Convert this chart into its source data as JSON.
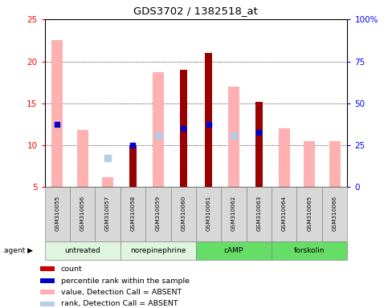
{
  "title": "GDS3702 / 1382518_at",
  "samples": [
    "GSM310055",
    "GSM310056",
    "GSM310057",
    "GSM310058",
    "GSM310059",
    "GSM310060",
    "GSM310061",
    "GSM310062",
    "GSM310063",
    "GSM310064",
    "GSM310065",
    "GSM310066"
  ],
  "agent_labels": [
    "untreated",
    "norepinephrine",
    "cAMP",
    "forskolin"
  ],
  "agent_colors": [
    "#dff5df",
    "#dff5df",
    "#66dd66",
    "#66dd66"
  ],
  "pink_bar_tops": [
    22.5,
    11.8,
    6.2,
    null,
    18.7,
    null,
    null,
    17.0,
    null,
    12.0,
    10.5,
    10.5
  ],
  "light_blue_dot_y": [
    null,
    null,
    8.5,
    null,
    11.2,
    null,
    null,
    11.2,
    null,
    null,
    null,
    null
  ],
  "dark_red_bar_tops": [
    null,
    null,
    null,
    10.0,
    null,
    19.0,
    21.0,
    null,
    15.2,
    null,
    null,
    null
  ],
  "blue_marker_y": [
    12.5,
    null,
    null,
    10.0,
    null,
    12.0,
    12.5,
    null,
    11.5,
    null,
    null,
    null
  ],
  "ylim_left": [
    5,
    25
  ],
  "ylim_right": [
    0,
    100
  ],
  "yticks_left": [
    5,
    10,
    15,
    20,
    25
  ],
  "yticks_right": [
    0,
    25,
    50,
    75,
    100
  ],
  "yticklabels_right": [
    "0",
    "25",
    "50",
    "75",
    "100%"
  ],
  "pink_color": "#ffb0b0",
  "light_blue_color": "#b8cce4",
  "dark_red_color": "#990000",
  "blue_color": "#0000cc",
  "legend_items": [
    {
      "color": "#cc0000",
      "label": "count"
    },
    {
      "color": "#0000cc",
      "label": "percentile rank within the sample"
    },
    {
      "color": "#ffb0b0",
      "label": "value, Detection Call = ABSENT"
    },
    {
      "color": "#b8cce4",
      "label": "rank, Detection Call = ABSENT"
    }
  ]
}
